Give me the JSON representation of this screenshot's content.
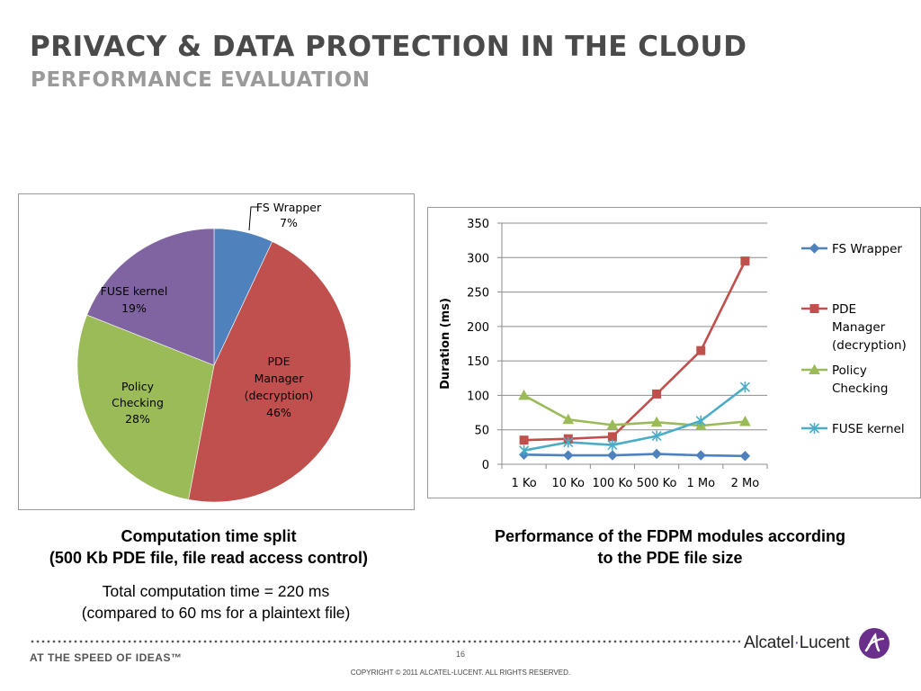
{
  "header": {
    "title": "PRIVACY & DATA PROTECTION IN THE CLOUD",
    "subtitle": "PERFORMANCE EVALUATION"
  },
  "chart_data": [
    {
      "type": "pie",
      "slices": [
        {
          "name": "FS Wrapper",
          "value": 7,
          "label_lines": [
            "FS Wrapper",
            "7%"
          ],
          "color": "#4f81bd"
        },
        {
          "name": "PDE Manager (decryption)",
          "value": 46,
          "label_lines": [
            "PDE",
            "Manager",
            "(decryption)",
            "46%"
          ],
          "color": "#c0504d"
        },
        {
          "name": "Policy Checking",
          "value": 28,
          "label_lines": [
            "Policy",
            "Checking",
            "28%"
          ],
          "color": "#9bbb59"
        },
        {
          "name": "FUSE kernel",
          "value": 19,
          "label_lines": [
            "FUSE kernel",
            "19%"
          ],
          "color": "#8064a2"
        }
      ]
    },
    {
      "type": "line",
      "categories": [
        "1 Ko",
        "10 Ko",
        "100 Ko",
        "500 Ko",
        "1 Mo",
        "2 Mo"
      ],
      "ylabel": "Duration (ms)",
      "ylim": [
        0,
        350
      ],
      "yticks": [
        "0",
        "50",
        "100",
        "150",
        "200",
        "250",
        "300",
        "350"
      ],
      "grid": true,
      "legend_position": "right",
      "series": [
        {
          "name": "FS Wrapper",
          "legend_lines": [
            "FS Wrapper"
          ],
          "color": "#4f81bd",
          "marker": "diamond",
          "values": [
            14,
            13,
            13,
            15,
            13,
            12
          ]
        },
        {
          "name": "PDE Manager (decryption)",
          "legend_lines": [
            "PDE",
            "Manager",
            "(decryption)"
          ],
          "color": "#c0504d",
          "marker": "square",
          "values": [
            35,
            37,
            40,
            102,
            165,
            295
          ]
        },
        {
          "name": "Policy Checking",
          "legend_lines": [
            "Policy",
            "Checking"
          ],
          "color": "#9bbb59",
          "marker": "triangle",
          "values": [
            100,
            65,
            57,
            61,
            56,
            62
          ]
        },
        {
          "name": "FUSE kernel",
          "legend_lines": [
            "FUSE kernel"
          ],
          "color": "#4bacc6",
          "marker": "star",
          "values": [
            20,
            32,
            28,
            41,
            63,
            112
          ]
        }
      ]
    }
  ],
  "captions": {
    "pie_line1": "Computation time split",
    "pie_line2": "(500 Kb PDE file, file read access control)",
    "line_line1": "Performance of the FDPM modules according",
    "line_line2": "to the PDE file size",
    "note_line1": "Total computation time = 220 ms",
    "note_line2": "(compared to 60 ms for a plaintext file)"
  },
  "footer": {
    "tagline": "AT THE SPEED OF IDEAS™",
    "page_number": "16",
    "copyright": "COPYRIGHT © 2011 ALCATEL-LUCENT.  ALL RIGHTS RESERVED.",
    "brand_part1": "Alcatel",
    "brand_sep": "·",
    "brand_part2": "Lucent",
    "brand_color": "#6a2f8a",
    "logo_icon": "alcatel-lucent-logo-icon"
  }
}
